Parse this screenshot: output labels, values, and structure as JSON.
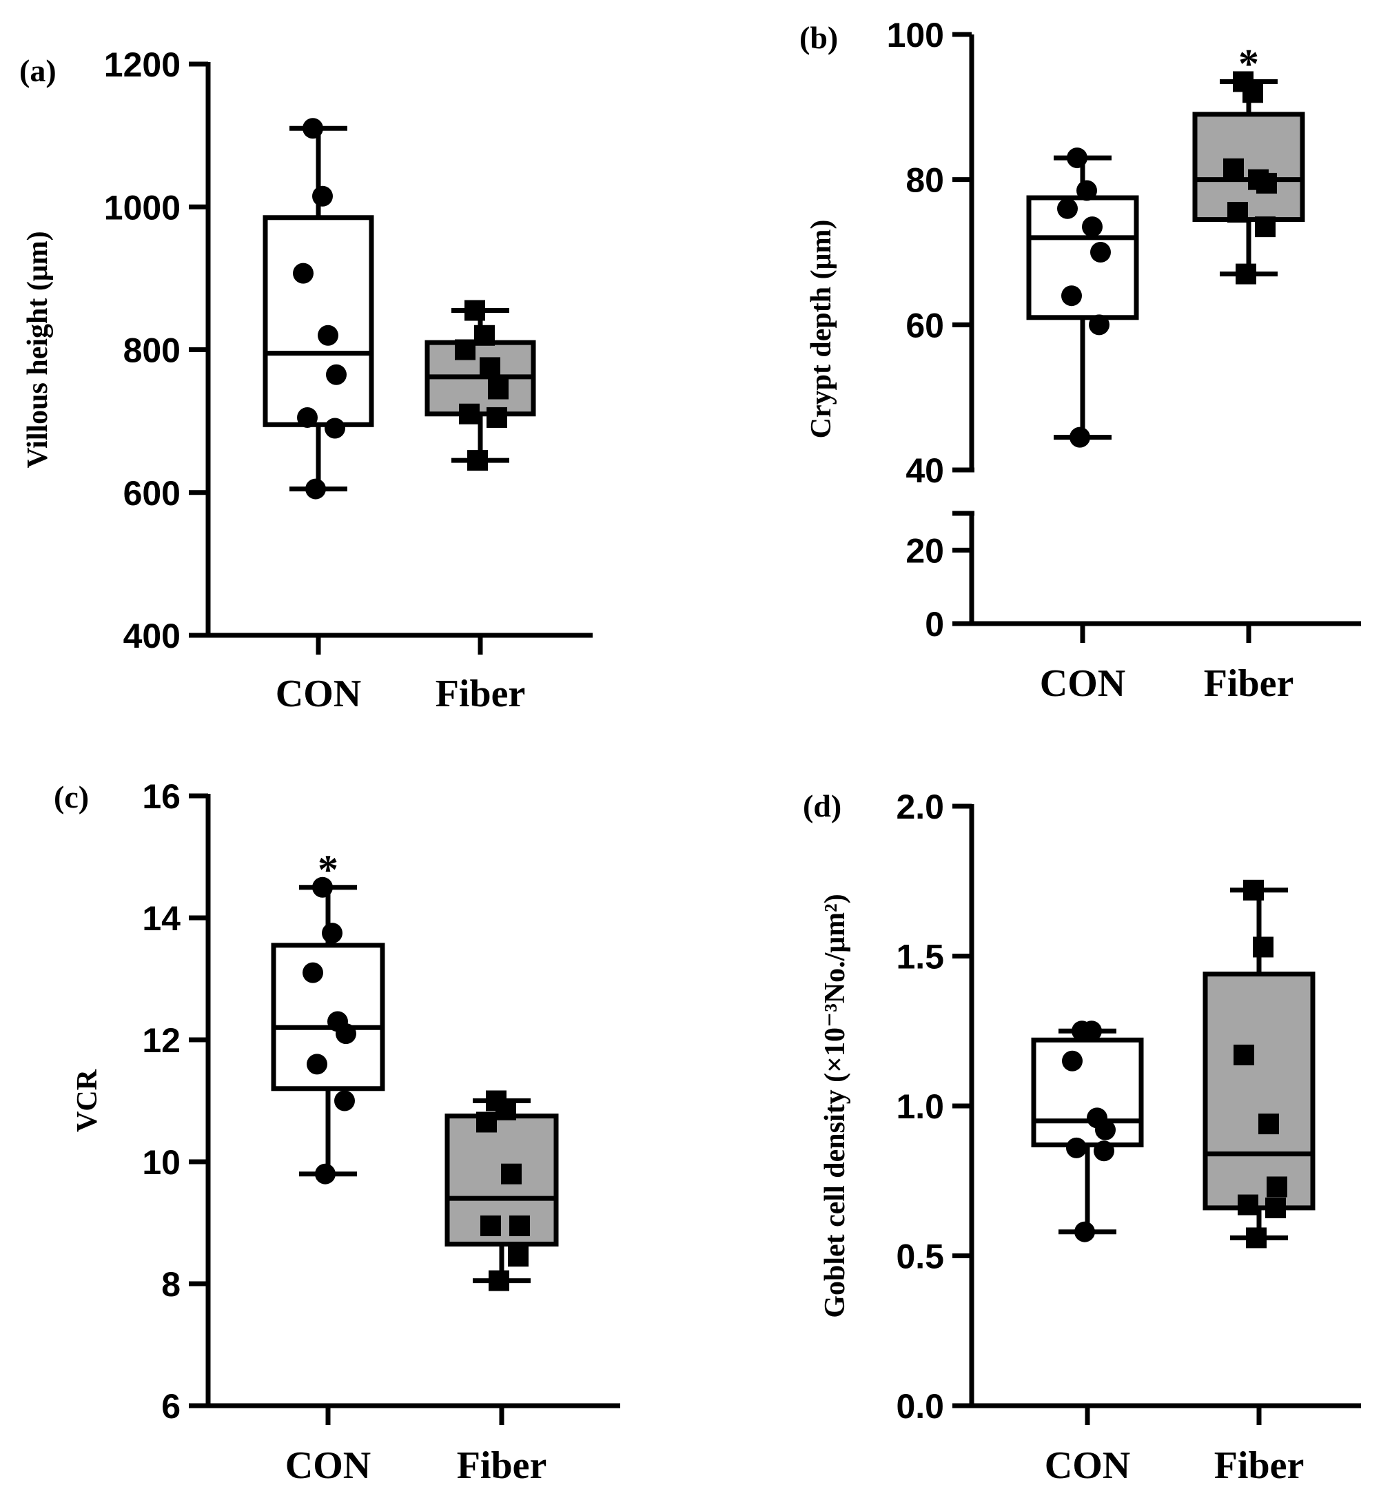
{
  "chart_data": [
    {
      "id": "a",
      "type": "box",
      "panel_label": "(a)",
      "ylabel": "Villous height (μm)",
      "ylim": [
        400,
        1200
      ],
      "yticks": [
        400,
        600,
        800,
        1000,
        1200
      ],
      "categories": [
        "CON",
        "Fiber"
      ],
      "series": [
        {
          "name": "CON",
          "marker": "circle",
          "fill": "#ffffff",
          "min": 605,
          "q1": 695,
          "median": 795,
          "q3": 985,
          "max": 1110,
          "points": [
            1110,
            1015,
            907,
            820,
            765,
            705,
            690,
            605
          ]
        },
        {
          "name": "Fiber",
          "marker": "square",
          "fill": "#a6a6a6",
          "min": 645,
          "q1": 710,
          "median": 762,
          "q3": 810,
          "max": 855,
          "points": [
            855,
            820,
            800,
            775,
            745,
            710,
            705,
            645
          ]
        }
      ],
      "annotations": []
    },
    {
      "id": "b",
      "type": "box",
      "panel_label": "(b)",
      "ylabel": "Crypt depth (μm)",
      "ylim": [
        0,
        100
      ],
      "axis_break": [
        30,
        40
      ],
      "yticks": [
        0,
        20,
        40,
        60,
        80,
        100
      ],
      "categories": [
        "CON",
        "Fiber"
      ],
      "series": [
        {
          "name": "CON",
          "marker": "circle",
          "fill": "#ffffff",
          "min": 44.5,
          "q1": 61,
          "median": 72,
          "q3": 77.5,
          "max": 83,
          "points": [
            83,
            78.5,
            76,
            73.5,
            70,
            64,
            60,
            44.5
          ]
        },
        {
          "name": "Fiber",
          "marker": "square",
          "fill": "#a6a6a6",
          "min": 67,
          "q1": 74.5,
          "median": 80,
          "q3": 89,
          "max": 93.5,
          "points": [
            93.5,
            92,
            81.5,
            80,
            79.5,
            75.5,
            73.5,
            67
          ]
        }
      ],
      "annotations": [
        {
          "text": "*",
          "category": "Fiber"
        }
      ]
    },
    {
      "id": "c",
      "type": "box",
      "panel_label": "(c)",
      "ylabel": "VCR",
      "ylim": [
        6,
        16
      ],
      "yticks": [
        6,
        8,
        10,
        12,
        14,
        16
      ],
      "categories": [
        "CON",
        "Fiber"
      ],
      "series": [
        {
          "name": "CON",
          "marker": "circle",
          "fill": "#ffffff",
          "min": 9.8,
          "q1": 11.2,
          "median": 12.2,
          "q3": 13.55,
          "max": 14.5,
          "points": [
            14.5,
            13.75,
            13.1,
            12.3,
            12.1,
            11.6,
            11.0,
            9.8
          ]
        },
        {
          "name": "Fiber",
          "marker": "square",
          "fill": "#a6a6a6",
          "min": 8.05,
          "q1": 8.65,
          "median": 9.4,
          "q3": 10.75,
          "max": 11.0,
          "points": [
            11.0,
            10.85,
            10.65,
            9.8,
            8.95,
            8.95,
            8.45,
            8.05
          ]
        }
      ],
      "annotations": [
        {
          "text": "*",
          "category": "CON"
        }
      ]
    },
    {
      "id": "d",
      "type": "box",
      "panel_label": "(d)",
      "ylabel": "Goblet cell density (×10⁻³No./μm²)",
      "ylim": [
        0,
        2.0
      ],
      "yticks": [
        0.0,
        0.5,
        1.0,
        1.5,
        2.0
      ],
      "categories": [
        "CON",
        "Fiber"
      ],
      "series": [
        {
          "name": "CON",
          "marker": "circle",
          "fill": "#ffffff",
          "min": 0.58,
          "q1": 0.87,
          "median": 0.95,
          "q3": 1.22,
          "max": 1.25,
          "points": [
            1.25,
            1.25,
            1.15,
            0.96,
            0.92,
            0.86,
            0.85,
            0.58
          ]
        },
        {
          "name": "Fiber",
          "marker": "square",
          "fill": "#a6a6a6",
          "min": 0.56,
          "q1": 0.66,
          "median": 0.84,
          "q3": 1.44,
          "max": 1.72,
          "points": [
            1.72,
            1.53,
            1.17,
            0.94,
            0.73,
            0.67,
            0.66,
            0.56
          ]
        }
      ],
      "annotations": []
    }
  ]
}
